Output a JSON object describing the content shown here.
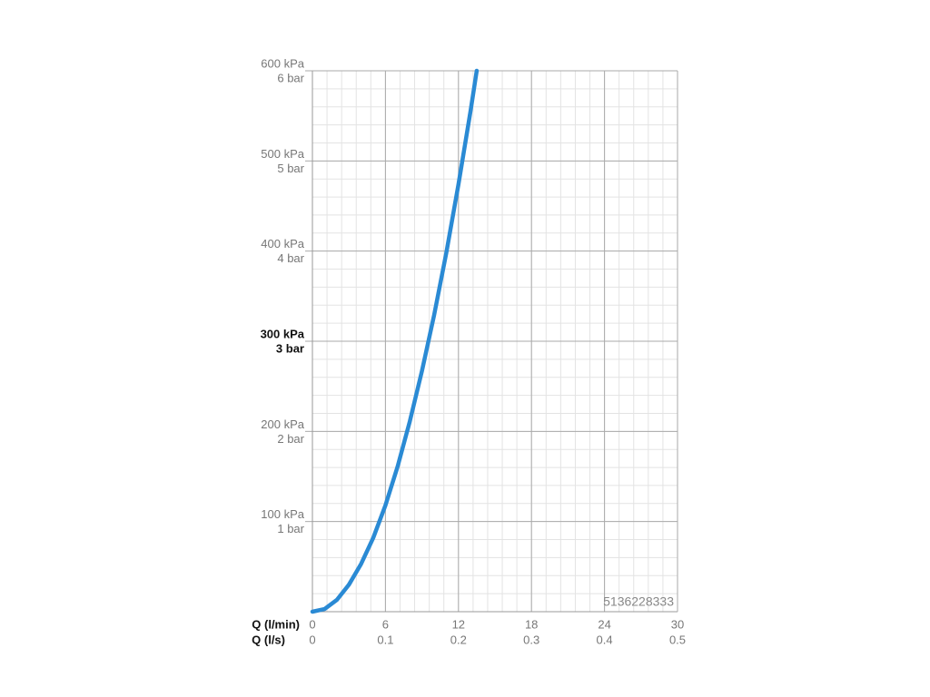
{
  "chart_data": {
    "type": "line",
    "x_label": "Q (l/min)",
    "x2_label": "Q (l/s)",
    "watermark": "5136228333",
    "x": [
      0,
      1,
      2,
      3,
      4,
      5,
      6,
      7,
      8,
      9,
      10,
      11,
      12,
      13,
      13.5
    ],
    "series": [
      {
        "color": "#2a8ad4",
        "values": [
          0,
          3,
          13,
          30,
          53,
          82,
          118,
          161,
          211,
          267,
          329,
          398,
          474,
          556,
          600
        ]
      }
    ],
    "xlim": [
      0,
      30
    ],
    "xticks": [
      0,
      6,
      12,
      18,
      24,
      30
    ],
    "x2ticks": [
      0,
      0.1,
      0.2,
      0.3,
      0.4,
      0.5
    ],
    "ylim": [
      0,
      600
    ],
    "yticks": [
      {
        "value": 100,
        "label": "100 kPa"
      },
      {
        "value": 200,
        "label": "200 kPa"
      },
      {
        "value": 300,
        "label": "300 kPa"
      },
      {
        "value": 400,
        "label": "400 kPa"
      },
      {
        "value": 500,
        "label": "500 kPa"
      },
      {
        "value": 600,
        "label": "600 kPa"
      }
    ],
    "ytick_bar_labels": [
      "1 bar",
      "2 bar",
      "3 bar",
      "4 bar",
      "5 bar",
      "6 bar"
    ],
    "bold_ytick": 300,
    "grid": true,
    "xminor": 1.2,
    "yminor": 20
  }
}
